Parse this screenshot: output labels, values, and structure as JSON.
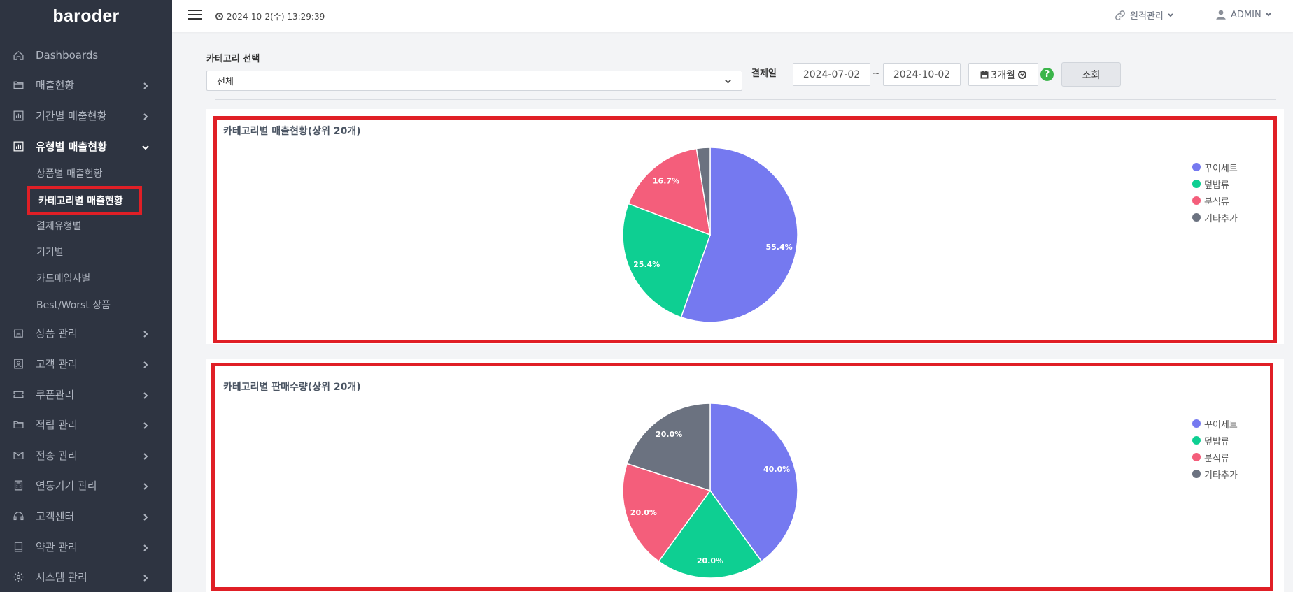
{
  "brand": {
    "logo": "baroder"
  },
  "sidebar": {
    "items": [
      {
        "label": "Dashboards",
        "icon": "home-icon",
        "has_chevron": false
      },
      {
        "label": "매출현황",
        "icon": "folder-icon",
        "has_chevron": true
      },
      {
        "label": "기간별 매출현황",
        "icon": "bar-chart-icon",
        "has_chevron": true
      },
      {
        "label": "유형별 매출현황",
        "icon": "bar-chart-icon",
        "has_chevron": true,
        "open": true
      },
      {
        "label": "상품 관리",
        "icon": "shop-icon",
        "has_chevron": true
      },
      {
        "label": "고객 관리",
        "icon": "contacts-icon",
        "has_chevron": true
      },
      {
        "label": "쿠폰관리",
        "icon": "ticket-icon",
        "has_chevron": true
      },
      {
        "label": "적립 관리",
        "icon": "folder-icon",
        "has_chevron": true
      },
      {
        "label": "전송 관리",
        "icon": "send-icon",
        "has_chevron": true
      },
      {
        "label": "연동기기 관리",
        "icon": "calculator-icon",
        "has_chevron": true
      },
      {
        "label": "고객센터",
        "icon": "headset-icon",
        "has_chevron": true
      },
      {
        "label": "약관 관리",
        "icon": "book-icon",
        "has_chevron": true
      },
      {
        "label": "시스템 관리",
        "icon": "gear-icon",
        "has_chevron": true
      }
    ],
    "subitems": [
      {
        "label": "상품별 매출현황"
      },
      {
        "label": "카테고리별 매출현황",
        "active": true
      },
      {
        "label": "결제유형별"
      },
      {
        "label": "기기별"
      },
      {
        "label": "카드매입사별"
      },
      {
        "label": "Best/Worst 상품"
      }
    ]
  },
  "topbar": {
    "datetime": "2024-10-2(수) 13:29:39",
    "remote_label": "원격관리",
    "user_label": "ADMIN"
  },
  "filters": {
    "category_label": "카테고리 선택",
    "category_value": "전체",
    "date_label": "결제일",
    "start_date": "2024-07-02",
    "tilde": "~",
    "end_date": "2024-10-02",
    "period_label": "3개월",
    "help": "?",
    "search_button": "조회"
  },
  "colors": {
    "series": [
      "#7579f0",
      "#0ecf92",
      "#f45e7b",
      "#6b7280"
    ],
    "highlight": "#e01f26",
    "sidebar_bg": "#2e3441"
  },
  "chart_data": [
    {
      "type": "pie",
      "title": "카테고리별 매출현황(상위 20개)",
      "categories": [
        "꾸이세트",
        "덮밥류",
        "분식류",
        "기타추가"
      ],
      "values": [
        55.4,
        25.4,
        16.7,
        2.5
      ],
      "labels": [
        "55.4%",
        "25.4%",
        "16.7%",
        ""
      ],
      "legend": "right"
    },
    {
      "type": "pie",
      "title": "카테고리별 판매수량(상위 20개)",
      "categories": [
        "꾸이세트",
        "덮밥류",
        "분식류",
        "기타추가"
      ],
      "values": [
        40.0,
        20.0,
        20.0,
        20.0
      ],
      "labels": [
        "40.0%",
        "20.0%",
        "20.0%",
        "20.0%"
      ],
      "legend": "right"
    }
  ]
}
